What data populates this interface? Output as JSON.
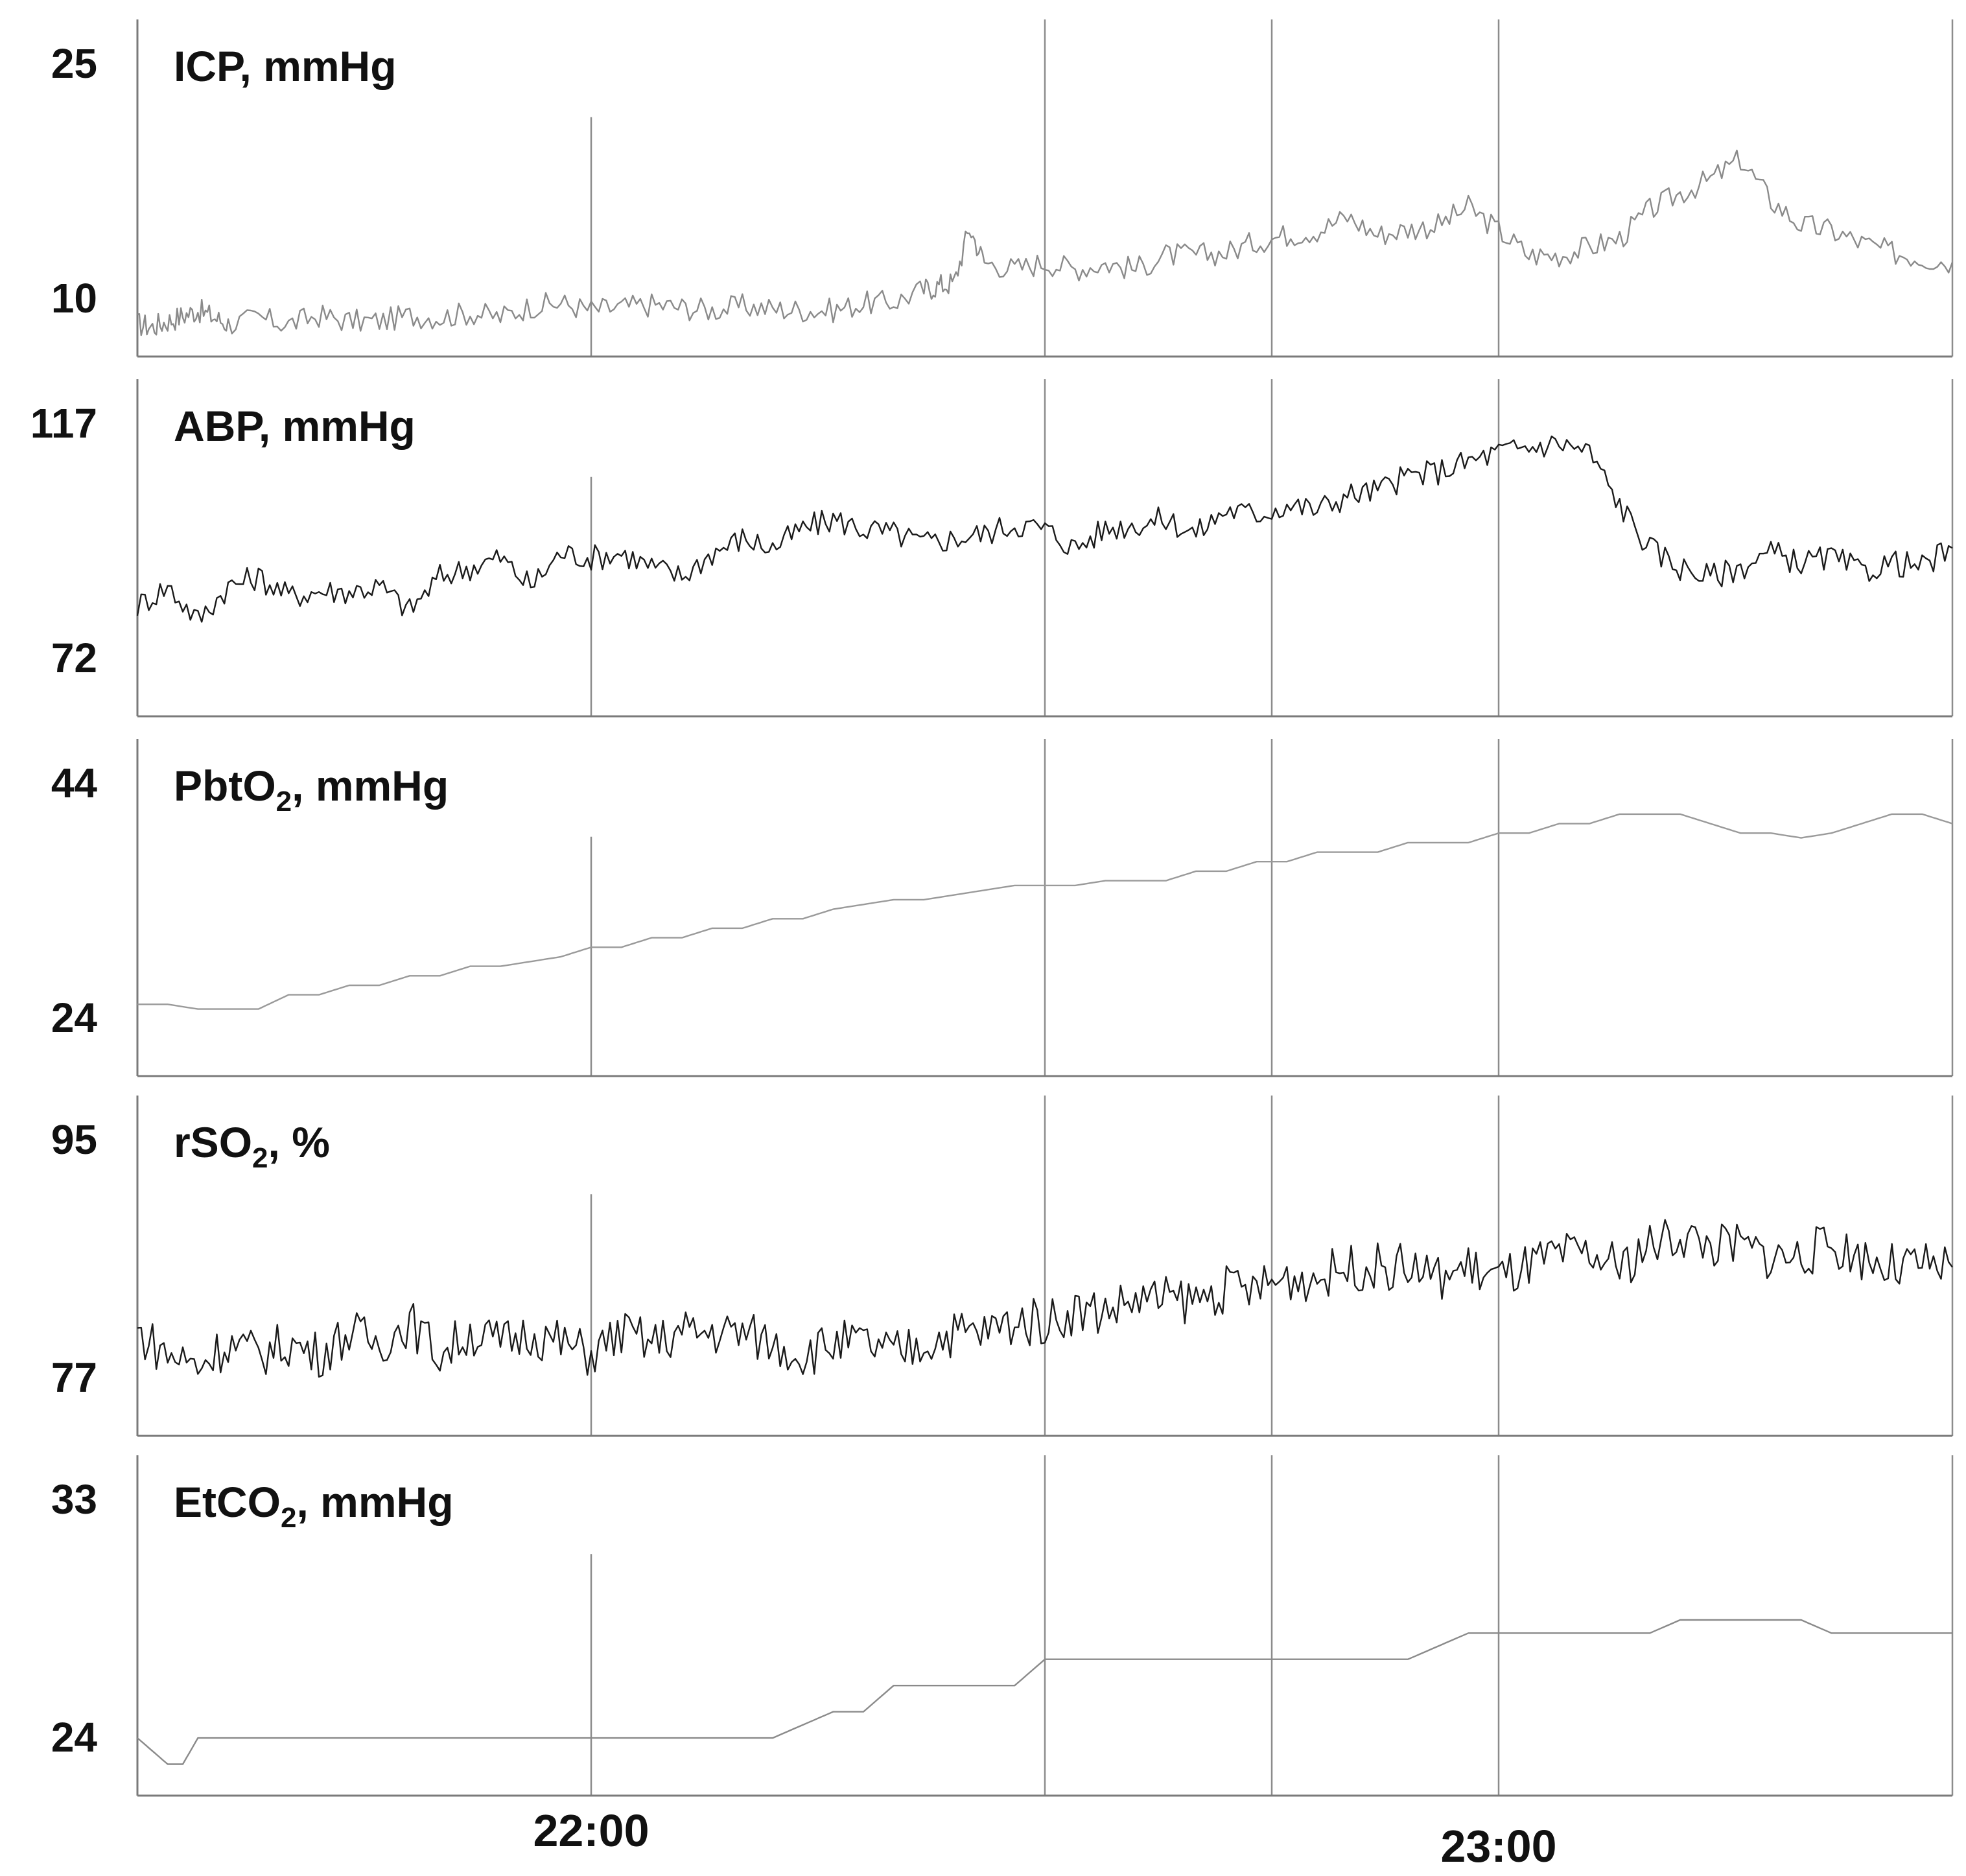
{
  "chart_data": {
    "type": "line",
    "x_axis": {
      "ticks": [
        {
          "label": "22:00",
          "t": 0
        },
        {
          "label": "23:00",
          "t": 60
        }
      ],
      "range_minutes": [
        -30,
        90
      ],
      "grid_minutes": [
        0,
        30,
        45,
        60,
        90
      ]
    },
    "panels": [
      {
        "id": "icp",
        "label": {
          "main": "ICP",
          "sub": "",
          "tail": ", mmHg"
        },
        "ticks": [
          "25",
          "10"
        ],
        "y_ticks": [
          25,
          10
        ],
        "ylim": [
          7,
          28
        ],
        "color": "#8a8a8a",
        "series": {
          "t": [
            -30,
            -29,
            -28,
            -27,
            -26,
            -25,
            -24,
            -22,
            -20,
            -18,
            -16,
            -14,
            -12,
            -10,
            -8,
            -6,
            -4,
            -2,
            0,
            2,
            4,
            6,
            8,
            10,
            12,
            14,
            16,
            18,
            20,
            22,
            23,
            24,
            25,
            26,
            28,
            30,
            32,
            34,
            36,
            38,
            40,
            42,
            44,
            46,
            48,
            50,
            52,
            54,
            56,
            58,
            60,
            62,
            64,
            66,
            68,
            70,
            72,
            74,
            76,
            78,
            80,
            82,
            84,
            86,
            88,
            90
          ],
          "values": [
            9,
            8.8,
            9.2,
            9.6,
            10,
            9.5,
            9,
            9.4,
            9,
            9.6,
            9.2,
            9.2,
            9.6,
            9.5,
            9.8,
            9.5,
            10.3,
            10.5,
            10,
            10.2,
            10.4,
            10.2,
            10,
            10.3,
            10.1,
            10,
            10,
            10.5,
            10.6,
            11.5,
            11.8,
            12,
            16,
            13.5,
            13,
            13.5,
            13,
            13.4,
            13,
            14,
            14,
            14.2,
            15,
            15.5,
            15.8,
            16.8,
            15.5,
            15.9,
            16.2,
            17.5,
            15.8,
            14,
            14,
            14.6,
            15.2,
            17.3,
            18.5,
            19.5,
            21,
            18,
            16.2,
            15.8,
            14.9,
            14.2,
            13.8,
            13.5
          ]
        }
      },
      {
        "id": "abp",
        "label": {
          "main": "ABP",
          "sub": "",
          "tail": ", mmHg"
        },
        "ticks": [
          "117",
          "72"
        ],
        "y_ticks": [
          117,
          72
        ],
        "ylim": [
          58,
          123
        ],
        "color": "#1a1a1a",
        "series": {
          "t": [
            -30,
            -28,
            -26,
            -24,
            -22,
            -20,
            -18,
            -16,
            -14,
            -12,
            -10,
            -8,
            -6,
            -4,
            -2,
            0,
            2,
            4,
            6,
            8,
            10,
            12,
            14,
            16,
            18,
            20,
            22,
            24,
            26,
            28,
            30,
            32,
            34,
            36,
            38,
            40,
            42,
            44,
            46,
            48,
            50,
            52,
            54,
            56,
            58,
            60,
            62,
            64,
            66,
            68,
            70,
            72,
            74,
            76,
            78,
            80,
            82,
            84,
            86,
            88,
            90
          ],
          "values": [
            80,
            84,
            77,
            84,
            86,
            82,
            83,
            83,
            84,
            79,
            86,
            88,
            90,
            84,
            91,
            90,
            91,
            88,
            86,
            91,
            94,
            92,
            96,
            98,
            96,
            95,
            93,
            94,
            95,
            97,
            96,
            92,
            96,
            97,
            98,
            95,
            100,
            99,
            101,
            100,
            103,
            104,
            107,
            108,
            110,
            112,
            113,
            114,
            112,
            101,
            92,
            88,
            86,
            88,
            91,
            89,
            90,
            87,
            89,
            88,
            92
          ]
        }
      },
      {
        "id": "pbto2",
        "label": {
          "main": "PbtO",
          "sub": "2",
          "tail": ", mmHg"
        },
        "ticks": [
          "44",
          "24"
        ],
        "y_ticks": [
          44,
          24
        ],
        "ylim": [
          16,
          47
        ],
        "color": "#9a9a9a",
        "series": {
          "t": [
            -30,
            -28,
            -26,
            -24,
            -22,
            -20,
            -18,
            -16,
            -14,
            -12,
            -10,
            -8,
            -6,
            -4,
            -2,
            0,
            2,
            4,
            6,
            8,
            10,
            12,
            14,
            16,
            18,
            20,
            22,
            24,
            26,
            28,
            30,
            32,
            34,
            36,
            38,
            40,
            42,
            44,
            46,
            48,
            50,
            52,
            54,
            56,
            58,
            60,
            62,
            64,
            66,
            68,
            70,
            72,
            74,
            76,
            78,
            80,
            82,
            84,
            86,
            88,
            90
          ],
          "values": [
            23,
            23,
            22.5,
            22.5,
            22.5,
            24,
            24,
            25,
            25,
            26,
            26,
            27,
            27,
            27.5,
            28,
            29,
            29,
            30,
            30,
            31,
            31,
            32,
            32,
            33,
            33.5,
            34,
            34,
            34.5,
            35,
            35.5,
            35.5,
            35.5,
            36,
            36,
            36,
            37,
            37,
            38,
            38,
            39,
            39,
            39,
            40,
            40,
            40,
            41,
            41,
            42,
            42,
            43,
            43,
            43,
            42,
            41,
            41,
            40.5,
            41,
            42,
            43,
            43,
            42
          ]
        }
      },
      {
        "id": "rso2",
        "label": {
          "main": "rSO",
          "sub": "2",
          "tail": ", %"
        },
        "ticks": [
          "95",
          "77"
        ],
        "y_ticks": [
          95,
          77
        ],
        "ylim": [
          70,
          97
        ],
        "color": "#1a1a1a",
        "series": {
          "t": [
            -30,
            -28,
            -26,
            -24,
            -22,
            -20,
            -18,
            -16,
            -14,
            -12,
            -10,
            -8,
            -6,
            -4,
            -2,
            0,
            2,
            4,
            6,
            8,
            10,
            12,
            14,
            16,
            18,
            20,
            22,
            24,
            26,
            28,
            30,
            32,
            34,
            36,
            38,
            40,
            42,
            44,
            46,
            48,
            50,
            52,
            54,
            56,
            58,
            60,
            62,
            64,
            66,
            68,
            70,
            72,
            74,
            76,
            78,
            80,
            82,
            84,
            86,
            88,
            90
          ],
          "values": [
            79,
            77,
            76,
            78,
            77,
            78,
            77,
            79,
            78,
            80,
            77,
            79,
            78,
            79,
            78,
            77,
            79,
            78,
            79,
            79,
            79,
            78,
            77,
            78,
            78,
            77,
            78,
            79,
            79,
            80,
            80,
            81,
            81,
            82,
            82,
            82,
            83,
            83,
            84,
            84,
            85,
            85,
            85,
            84,
            85,
            84,
            85,
            86,
            86,
            85,
            87,
            88,
            87,
            87,
            86,
            86,
            87,
            86,
            85,
            85,
            85
          ]
        }
      },
      {
        "id": "etco2",
        "label": {
          "main": "EtCO",
          "sub": "2",
          "tail": ", mmHg"
        },
        "ticks": [
          "33",
          "24"
        ],
        "y_ticks": [
          33,
          24
        ],
        "ylim": [
          22,
          34
        ],
        "color": "#8a8a8a",
        "series": {
          "t": [
            -30,
            -29,
            -28,
            -27,
            -26,
            -24,
            -22,
            -20,
            -18,
            -16,
            -14,
            -12,
            -10,
            -8,
            -6,
            -4,
            -2,
            0,
            2,
            4,
            6,
            8,
            10,
            12,
            14,
            16,
            18,
            20,
            22,
            24,
            26,
            28,
            30,
            32,
            34,
            36,
            38,
            40,
            42,
            44,
            46,
            48,
            50,
            52,
            54,
            56,
            58,
            60,
            62,
            64,
            66,
            68,
            70,
            72,
            74,
            76,
            78,
            80,
            82,
            84,
            86,
            88,
            90
          ],
          "values": [
            24,
            23.5,
            23,
            23,
            24,
            24,
            24,
            24,
            24,
            24,
            24,
            24,
            24,
            24,
            24,
            24,
            24,
            24,
            24,
            24,
            24,
            24,
            24,
            24,
            24.5,
            25,
            25,
            26,
            26,
            26,
            26,
            26,
            27,
            27,
            27,
            27,
            27,
            27,
            27,
            27,
            27,
            27,
            27,
            27,
            27,
            27.5,
            28,
            28,
            28,
            28,
            28,
            28,
            28,
            28.5,
            28.5,
            28.5,
            28.5,
            28.5,
            28,
            28,
            28,
            28,
            28
          ]
        }
      }
    ]
  }
}
